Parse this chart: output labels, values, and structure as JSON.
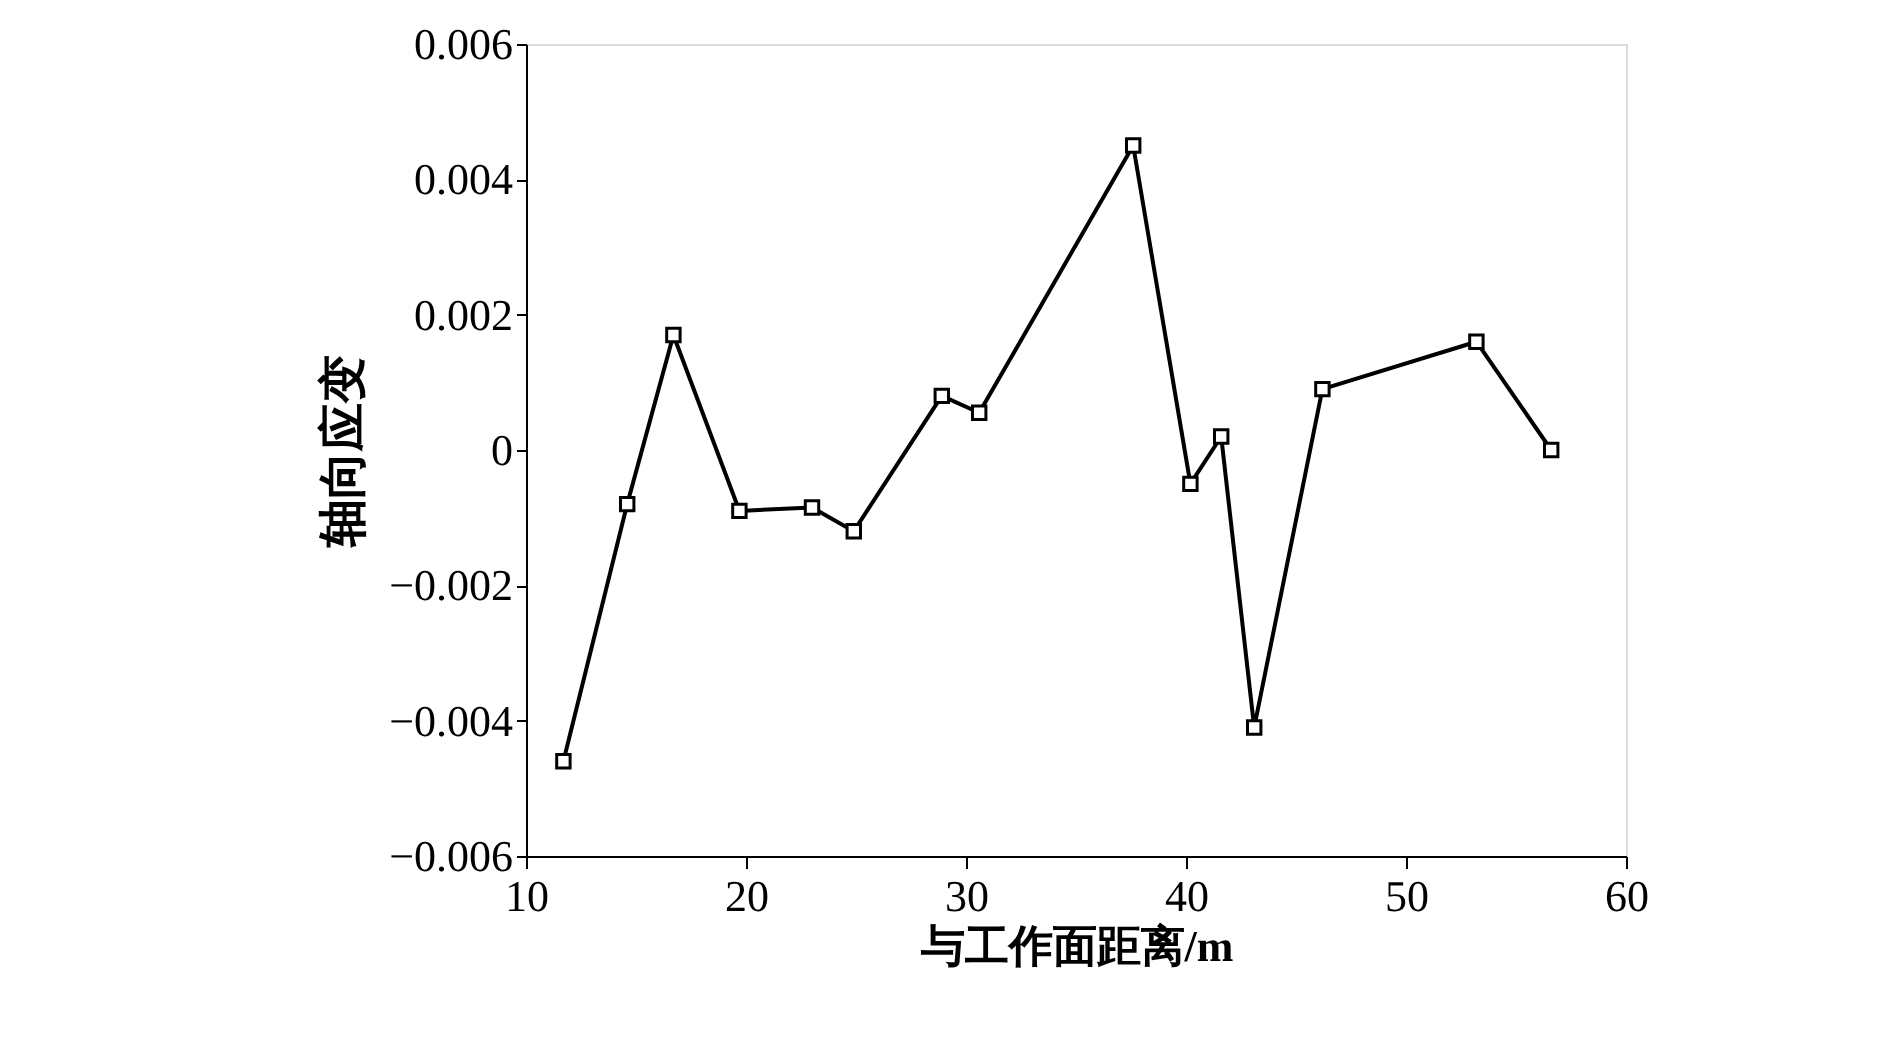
{
  "chart_data": {
    "type": "line",
    "xlabel": "与工作面距离/m",
    "ylabel": "轴向应变",
    "x": [
      11.7,
      14.6,
      16.7,
      19.7,
      23.0,
      24.9,
      28.9,
      30.6,
      37.6,
      40.2,
      41.6,
      43.1,
      46.2,
      53.2,
      56.6
    ],
    "series": [
      {
        "color": "#000000",
        "values": [
          -0.0046,
          -0.0008,
          0.0017,
          -0.0009,
          -0.00085,
          -0.0012,
          0.0008,
          0.00055,
          0.0045,
          -0.0005,
          0.0002,
          -0.0041,
          0.0009,
          0.0016,
          0.0
        ]
      }
    ],
    "xlim": [
      10,
      60
    ],
    "xticks": [
      10,
      20,
      30,
      40,
      50,
      60
    ],
    "ylim": [
      -0.006,
      0.006
    ],
    "yticks": [
      {
        "value": -0.006,
        "label": "−0.006"
      },
      {
        "value": -0.004,
        "label": "−0.004"
      },
      {
        "value": -0.002,
        "label": "−0.002"
      },
      0,
      0.002,
      0.004,
      0.006
    ],
    "marker": "square",
    "line_style": "solid",
    "grid": false,
    "legend": false
  }
}
